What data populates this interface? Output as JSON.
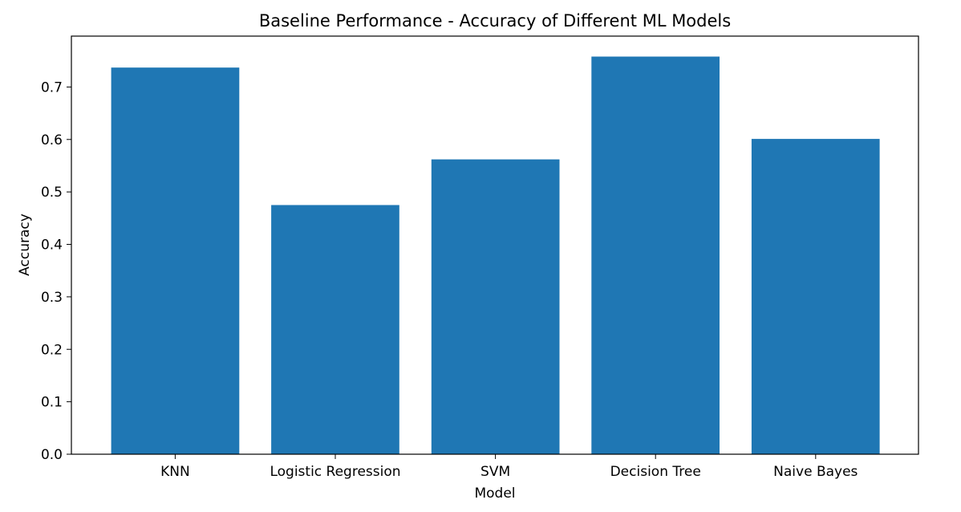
{
  "chart_data": {
    "type": "bar",
    "title": "Baseline Performance - Accuracy of Different ML Models",
    "xlabel": "Model",
    "ylabel": "Accuracy",
    "categories": [
      "KNN",
      "Logistic Regression",
      "SVM",
      "Decision Tree",
      "Naive Bayes"
    ],
    "values": [
      0.737,
      0.475,
      0.562,
      0.758,
      0.601
    ],
    "ylim": [
      0,
      0.8
    ],
    "yticks": [
      "0.0",
      "0.1",
      "0.2",
      "0.3",
      "0.4",
      "0.5",
      "0.6",
      "0.7"
    ],
    "bar_color": "#1f77b4",
    "grid": false,
    "legend": "none"
  }
}
